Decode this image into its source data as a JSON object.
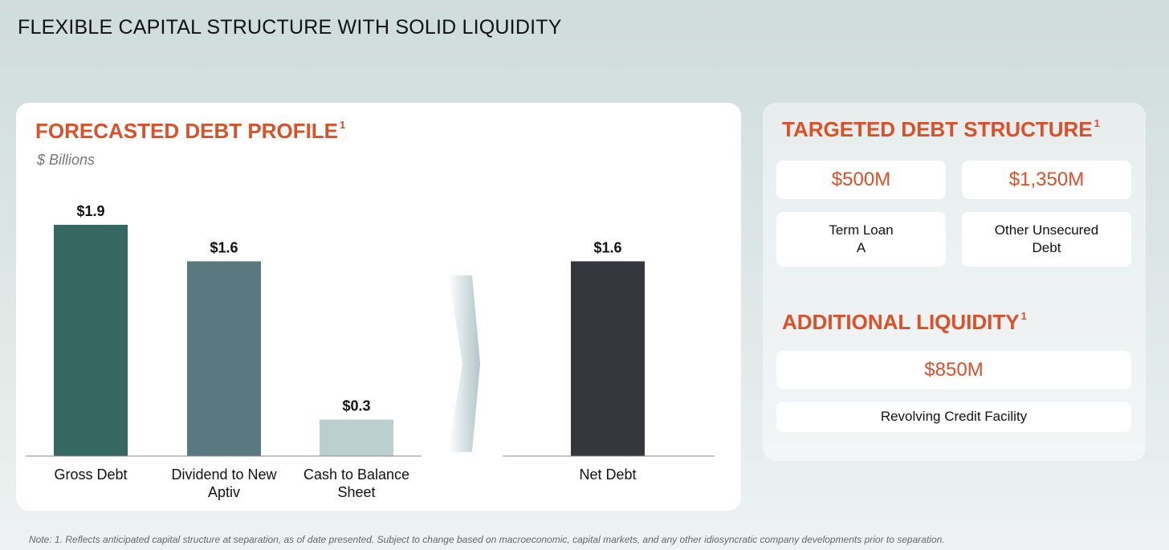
{
  "page_title": "FLEXIBLE CAPITAL STRUCTURE WITH SOLID LIQUIDITY",
  "left_panel": {
    "title": "FORECASTED DEBT PROFILE",
    "title_sup": "1",
    "units": "$ Billions"
  },
  "chart_data": {
    "type": "bar",
    "groups": [
      {
        "bars": [
          {
            "category": "Gross Debt",
            "value": 1.9,
            "label": "$1.9",
            "color": "#356860"
          },
          {
            "category": "Dividend to New Aptiv",
            "value": 1.6,
            "label": "$1.6",
            "color": "#5a7880"
          },
          {
            "category": "Cash to Balance Sheet",
            "value": 0.3,
            "label": "$0.3",
            "color": "#bccfcf"
          }
        ]
      },
      {
        "bars": [
          {
            "category": "Net Debt",
            "value": 1.6,
            "label": "$1.6",
            "color": "#35363e"
          }
        ]
      }
    ],
    "arrow_color": "#a9bfc3"
  },
  "right_panel": {
    "debt_structure": {
      "title": "TARGETED DEBT STRUCTURE",
      "title_sup": "1",
      "items": [
        {
          "value": "$500M",
          "label": "Term Loan\nA"
        },
        {
          "value": "$1,350M",
          "label": "Other Unsecured\nDebt"
        }
      ]
    },
    "liquidity": {
      "title": "ADDITIONAL LIQUIDITY",
      "title_sup": "1",
      "value": "$850M",
      "label": "Revolving Credit Facility"
    }
  },
  "footnote": "Note: 1. Reflects anticipated capital structure at separation, as of date presented. Subject to change based on macroeconomic, capital markets, and any other idiosyncratic company developments prior to separation."
}
